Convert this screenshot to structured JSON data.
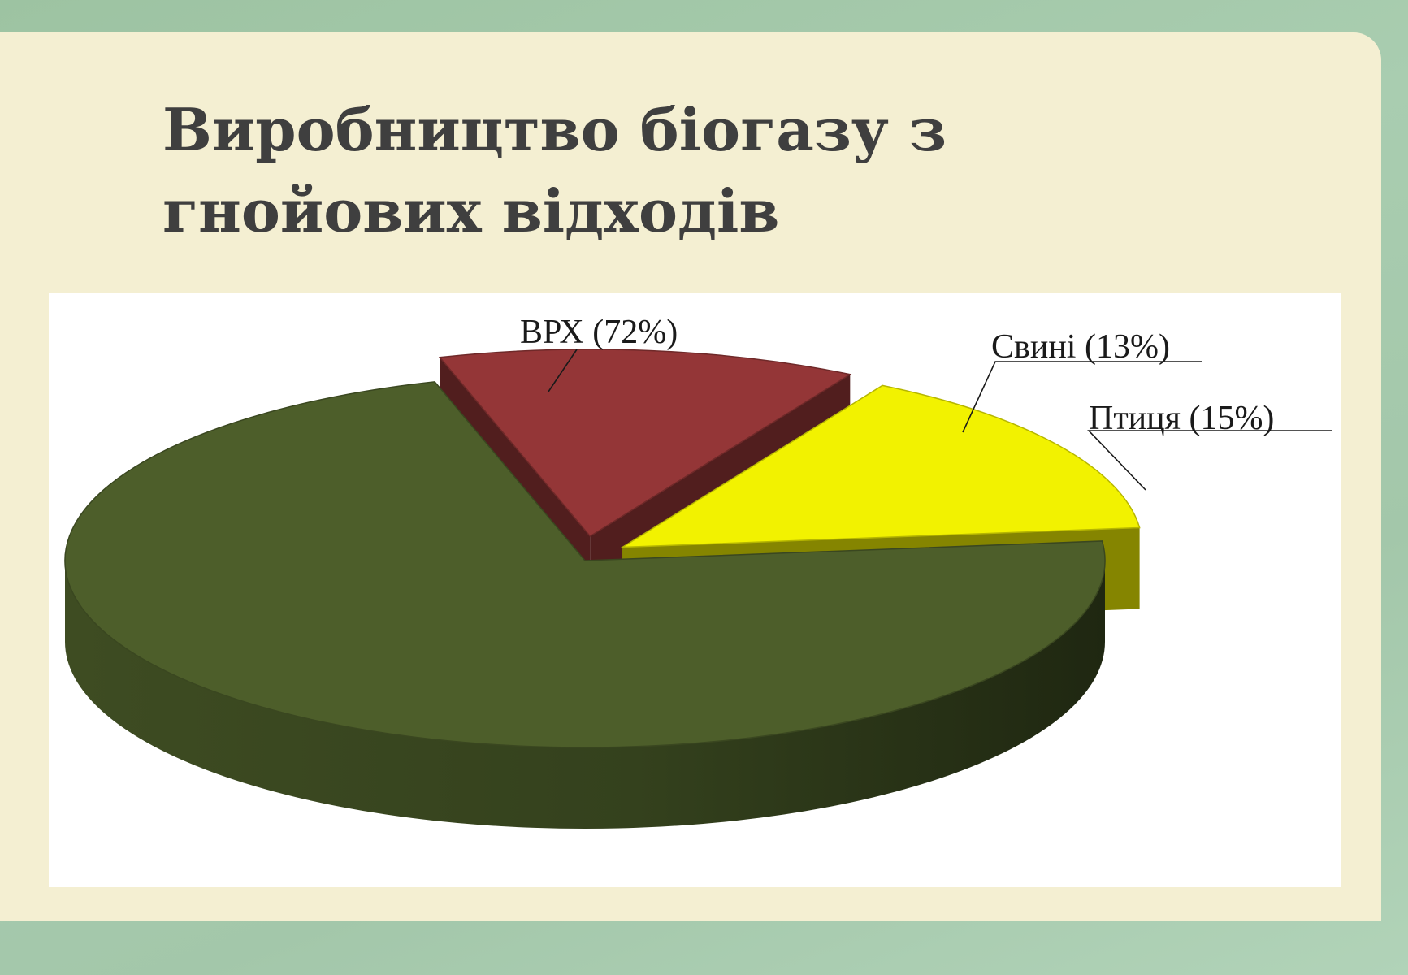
{
  "slide": {
    "title": "Виробництво біогазу з\nгнойових відходів"
  },
  "chart_data": {
    "type": "pie",
    "style": "3d-exploded",
    "categories": [
      "ВРХ",
      "Свині",
      "Птиця"
    ],
    "values": [
      72,
      13,
      15
    ],
    "labels": [
      "ВРХ (72%)",
      "Свині (13%)",
      "Птиця (15%)"
    ],
    "colors": {
      "ВРХ": "#4d5e2a",
      "Свині": "#943637",
      "Птиця": "#f2f200"
    },
    "legend": "none"
  }
}
